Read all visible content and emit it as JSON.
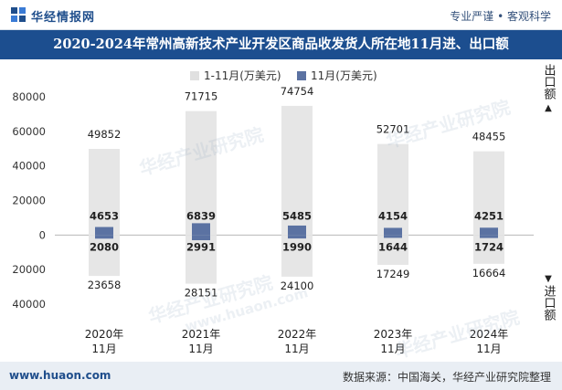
{
  "header": {
    "brand": "华经情报网",
    "slogan": "专业严谨 • 客观科学"
  },
  "chart_data": {
    "type": "bar",
    "title": "2020-2024年常州高新技术产业开发区商品收发货人所在地11月进、出口额",
    "categories": [
      "2020年\n11月",
      "2021年\n11月",
      "2022年\n11月",
      "2023年\n11月",
      "2024年\n11月"
    ],
    "category_lines": [
      [
        "2020年",
        "11月"
      ],
      [
        "2021年",
        "11月"
      ],
      [
        "2022年",
        "11月"
      ],
      [
        "2023年",
        "11月"
      ],
      [
        "2024年",
        "11月"
      ]
    ],
    "series": [
      {
        "name": "1-11月(万美元)",
        "export": [
          49852,
          71715,
          74754,
          52701,
          48455
        ],
        "import": [
          23658,
          28151,
          24100,
          17249,
          16664
        ],
        "color": "#e6e6e6"
      },
      {
        "name": "11月(万美元)",
        "export": [
          4653,
          6839,
          5485,
          4154,
          4251
        ],
        "import": [
          2080,
          2991,
          1990,
          1644,
          1724
        ],
        "color": "#5b72a2"
      }
    ],
    "ylim": [
      -40000,
      80000
    ],
    "yticks": [
      80000,
      60000,
      40000,
      20000,
      0,
      -20000,
      -40000
    ],
    "ytick_labels": [
      "80000",
      "60000",
      "40000",
      "20000",
      "0",
      "20000",
      "40000"
    ],
    "side_labels": {
      "export": "出口额",
      "import": "进口额"
    },
    "legend_position": "top"
  },
  "watermarks": [
    "华经产业研究院",
    "www.huaon.com"
  ],
  "footer": {
    "website": "www.huaon.com",
    "source": "数据来源：中国海关，华经产业研究院整理"
  }
}
